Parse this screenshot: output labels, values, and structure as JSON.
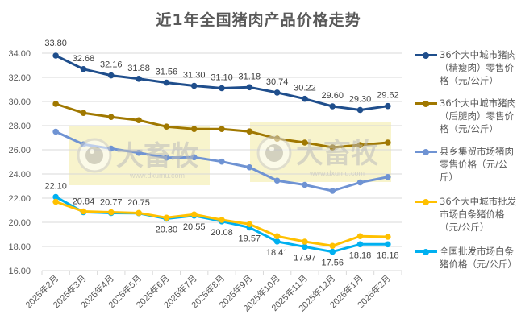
{
  "chart_data": {
    "type": "line",
    "title": "近1年全国猪肉产品价格走势",
    "xlabel": "",
    "ylabel": "",
    "ylim": [
      16,
      34
    ],
    "yticks": [
      "16.00",
      "18.00",
      "20.00",
      "22.00",
      "24.00",
      "26.00",
      "28.00",
      "30.00",
      "32.00",
      "34.00"
    ],
    "grid": true,
    "legend_position": "right",
    "categories": [
      "2025年2月",
      "2025年3月",
      "2025年4月",
      "2025年5月",
      "2025年6月",
      "2025年7月",
      "2025年8月",
      "2025年9月",
      "2025年10月",
      "2025年11月",
      "2025年12月",
      "2026年1月",
      "2026年2月"
    ],
    "series": [
      {
        "name": "36个大中城市猪肉（精瘦肉）零售价格（元/公斤）",
        "color": "#1F4E8C",
        "labeled": true,
        "label_position": "above",
        "values": [
          33.8,
          32.68,
          32.16,
          31.88,
          31.56,
          31.3,
          31.1,
          31.18,
          30.74,
          30.22,
          29.6,
          29.3,
          29.62
        ]
      },
      {
        "name": "36个大中城市猪肉（后腿肉）零售价格（元/公斤）",
        "color": "#A07800",
        "labeled": false,
        "values": [
          29.8,
          29.05,
          28.72,
          28.45,
          27.92,
          27.72,
          27.72,
          27.52,
          26.92,
          26.6,
          26.2,
          26.4,
          26.6
        ]
      },
      {
        "name": "县乡集贸市场猪肉零售价格（元/公斤）",
        "color": "#6F93D3",
        "labeled": false,
        "values": [
          27.5,
          26.45,
          26.1,
          25.75,
          25.35,
          25.38,
          25.02,
          24.55,
          23.45,
          23.1,
          22.6,
          23.3,
          23.75
        ]
      },
      {
        "name": "36个大中城市批发市场白条猪价格（元/公斤）",
        "color": "#FFC000",
        "labeled": false,
        "values": [
          21.7,
          20.9,
          20.83,
          20.77,
          20.38,
          20.65,
          20.2,
          19.85,
          18.85,
          18.4,
          18.05,
          18.85,
          18.8
        ]
      },
      {
        "name": "全国批发市场白条猪价格（元/公斤）",
        "color": "#00B0F0",
        "labeled": true,
        "label_position": "mixed",
        "values": [
          22.1,
          20.84,
          20.77,
          20.75,
          20.3,
          20.55,
          20.08,
          19.57,
          18.41,
          17.97,
          17.56,
          18.18,
          18.18
        ]
      }
    ]
  },
  "legend": {
    "items": [
      {
        "label": "36个大中城市猪肉（精瘦肉）零售价格（元/公斤）",
        "color": "#1F4E8C"
      },
      {
        "label": "36个大中城市猪肉（后腿肉）零售价格（元/公斤）",
        "color": "#A07800"
      },
      {
        "label": "县乡集贸市场猪肉零售价格（元/公斤）",
        "color": "#6F93D3"
      },
      {
        "label": "36个大中城市批发市场白条猪价格（元/公斤）",
        "color": "#FFC000"
      },
      {
        "label": "全国批发市场白条猪价格（元/公斤）",
        "color": "#00B0F0"
      }
    ]
  },
  "watermark": {
    "text": "大畜牧",
    "url_text": "www.dxumu.com"
  }
}
